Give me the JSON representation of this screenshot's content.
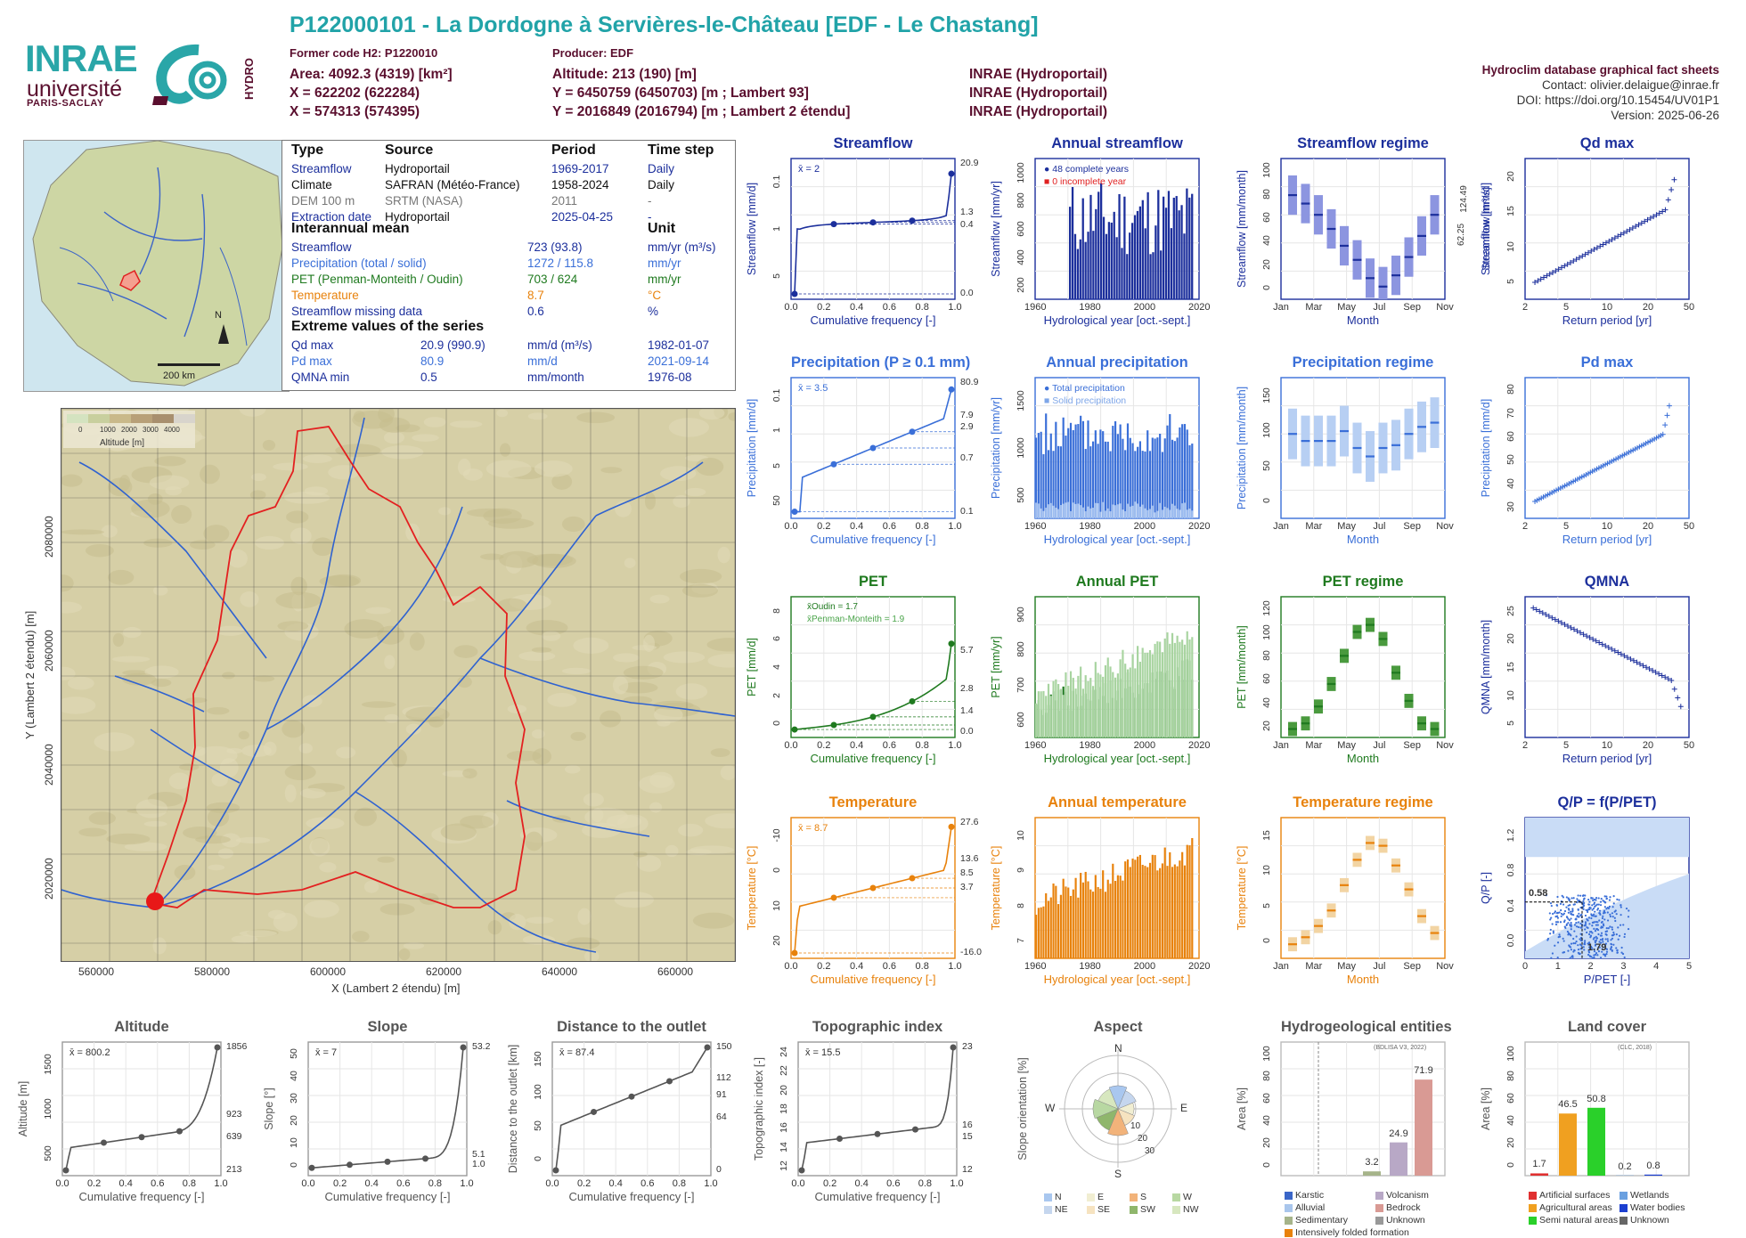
{
  "header": {
    "title": "P122000101 - La Dordogne à Servières-le-Château [EDF - Le Chastang]",
    "former_code": "Former code H2: P1220010",
    "producer": "Producer: EDF",
    "area": "Area: 4092.3 (4319) [km²]",
    "x1": "X = 622202 (622284)",
    "x2": "X = 574313 (574395)",
    "altitude": "Altitude: 213 (190) [m]",
    "y1": "Y = 6450759 (6450703) [m ; Lambert 93]",
    "y2": "Y = 2016849 (2016794) [m ; Lambert 2 étendu]",
    "src1": "INRAE (Hydroportail)",
    "src2": "INRAE (Hydroportail)",
    "src3": "INRAE (Hydroportail)",
    "sheet": "Hydroclim database graphical fact sheets",
    "contact": "Contact: olivier.delaigue@inrae.fr",
    "doi": "DOI: https://doi.org/10.15454/UV01P1",
    "version": "Version: 2025-06-26"
  },
  "logos": {
    "inrae": "INRAE",
    "univ": "université",
    "ps": "PARIS-SACLAY",
    "hydro": "HYDRO"
  },
  "inset": {
    "north": "N",
    "scale": "200 km"
  },
  "info": {
    "h_type": "Type",
    "h_source": "Source",
    "h_period": "Period",
    "h_timestep": "Time step",
    "rows": [
      {
        "type": "Streamflow",
        "source": "Hydroportail",
        "period": "1969-2017",
        "step": "Daily",
        "color": "#1c2f9c"
      },
      {
        "type": "Climate",
        "source": "SAFRAN (Météo-France)",
        "period": "1958-2024",
        "step": "Daily",
        "color": "#111"
      },
      {
        "type": "DEM 100 m",
        "source": "SRTM (NASA)",
        "period": "2011",
        "step": "-",
        "color": "#777"
      },
      {
        "type": "Extraction date",
        "source": "Hydroportail",
        "period": "2025-04-25",
        "step": "-",
        "color": "#1c2f9c"
      }
    ],
    "h_inter": "Interannual mean",
    "h_unit": "Unit",
    "inter": [
      {
        "label": "Streamflow",
        "value": "723 (93.8)",
        "unit": "mm/yr (m³/s)",
        "color": "#1c2f9c"
      },
      {
        "label": "Precipitation (total / solid)",
        "value": "1272 / 115.8",
        "unit": "mm/yr",
        "color": "#3a6fd8"
      },
      {
        "label": "PET (Penman-Monteith / Oudin)",
        "value": "703 / 624",
        "unit": "mm/yr",
        "color": "#1f7a1f"
      },
      {
        "label": "Temperature",
        "value": "8.7",
        "unit": "°C",
        "color": "#e8820c"
      },
      {
        "label": "Streamflow missing data",
        "value": "0.6",
        "unit": "%",
        "color": "#1c2f9c"
      }
    ],
    "h_extreme": "Extreme values of the series",
    "extreme": [
      {
        "label": "Qd max",
        "value": "20.9 (990.9)",
        "unit": "mm/d (m³/s)",
        "date": "1982-01-07",
        "color": "#1c2f9c"
      },
      {
        "label": "Pd max",
        "value": "80.9",
        "unit": "mm/d",
        "date": "2021-09-14",
        "color": "#3a6fd8"
      },
      {
        "label": "QMNA min",
        "value": "0.5",
        "unit": "mm/month",
        "date": "1976-08",
        "color": "#1c2f9c"
      }
    ]
  },
  "bigmap": {
    "x_ticks": [
      "560000",
      "580000",
      "600000",
      "620000",
      "640000",
      "660000"
    ],
    "y_ticks": [
      "2020000",
      "2040000",
      "2060000",
      "2080000"
    ],
    "xlabel": "X (Lambert 2 étendu) [m]",
    "ylabel": "Y (Lambert 2 étendu) [m]",
    "legend_ticks": [
      "0",
      "1000",
      "2000",
      "3000",
      "4000"
    ],
    "legend_title": "Altitude [m]"
  },
  "panels": {
    "streamflow": {
      "title": "Streamflow",
      "ylabel": "Streamflow [mm/d]",
      "xlabel": "Cumulative frequency [-]",
      "mean": "x̄ = 2",
      "right_ticks": [
        "20.9",
        "1.3",
        "0.4",
        "0.0"
      ],
      "x_ticks": [
        "0.0",
        "0.2",
        "0.4",
        "0.6",
        "0.8",
        "1.0"
      ],
      "y_ticks": [
        "5",
        "1",
        "0.1"
      ]
    },
    "annual_streamflow": {
      "title": "Annual streamflow",
      "ylabel": "Streamflow [mm/yr]",
      "xlabel": "Hydrological year [oct.-sept.]",
      "leg1": "48 complete years",
      "leg2": "0 incomplete year",
      "x_ticks": [
        "1960",
        "1980",
        "2000",
        "2020"
      ],
      "y_ticks": [
        "200",
        "400",
        "600",
        "800",
        "1000"
      ]
    },
    "streamflow_regime": {
      "title": "Streamflow regime",
      "ylabel": "Streamflow [mm/month]",
      "xlabel": "Month",
      "right_label": "Streamflow [m³/s]",
      "right_ticks": [
        "124.49",
        "62.25"
      ],
      "x_ticks": [
        "Jan",
        "Mar",
        "May",
        "Jul",
        "Sep",
        "Nov"
      ],
      "y_ticks": [
        "0",
        "20",
        "40",
        "60",
        "80",
        "100"
      ]
    },
    "qd_max": {
      "title": "Qd max",
      "ylabel": "Streamflow [mm/d]",
      "xlabel": "Return period [yr]",
      "x_ticks": [
        "2",
        "5",
        "10",
        "20",
        "50"
      ],
      "y_ticks": [
        "5",
        "10",
        "15",
        "20"
      ]
    },
    "precipitation": {
      "title": "Precipitation (P ≥ 0.1 mm)",
      "ylabel": "Precipitation [mm/d]",
      "xlabel": "Cumulative frequency [-]",
      "mean": "x̄ = 3.5",
      "right_ticks": [
        "80.9",
        "7.9",
        "2.9",
        "0.7",
        "0.1"
      ],
      "x_ticks": [
        "0.0",
        "0.2",
        "0.4",
        "0.6",
        "0.8",
        "1.0"
      ],
      "y_ticks": [
        "50",
        "5",
        "1",
        "0.1"
      ]
    },
    "annual_precipitation": {
      "title": "Annual precipitation",
      "ylabel": "Precipitation [mm/yr]",
      "xlabel": "Hydrological year [oct.-sept.]",
      "leg1": "Total precipitation",
      "leg2": "Solid precipitation",
      "x_ticks": [
        "1960",
        "1980",
        "2000",
        "2020"
      ],
      "y_ticks": [
        "500",
        "1000",
        "1500"
      ]
    },
    "precipitation_regime": {
      "title": "Precipitation regime",
      "ylabel": "Precipitation [mm/month]",
      "xlabel": "Month",
      "x_ticks": [
        "Jan",
        "Mar",
        "May",
        "Jul",
        "Sep",
        "Nov"
      ],
      "y_ticks": [
        "0",
        "50",
        "100",
        "150"
      ]
    },
    "pd_max": {
      "title": "Pd max",
      "ylabel": "Precipitation [mm/d]",
      "xlabel": "Return period [yr]",
      "x_ticks": [
        "2",
        "5",
        "10",
        "20",
        "50"
      ],
      "y_ticks": [
        "30",
        "40",
        "50",
        "60",
        "70",
        "80"
      ]
    },
    "pet": {
      "title": "PET",
      "ylabel": "PET [mm/d]",
      "xlabel": "Cumulative frequency [-]",
      "leg1": "x̄Oudin = 1.7",
      "leg2": "x̄Penman-Monteith = 1.9",
      "right_ticks": [
        "5.7",
        "2.8",
        "1.4",
        "0.0"
      ],
      "x_ticks": [
        "0.0",
        "0.2",
        "0.4",
        "0.6",
        "0.8",
        "1.0"
      ],
      "y_ticks": [
        "0",
        "2",
        "4",
        "6",
        "8"
      ]
    },
    "annual_pet": {
      "title": "Annual PET",
      "ylabel": "PET [mm/yr]",
      "xlabel": "Hydrological year [oct.-sept.]",
      "x_ticks": [
        "1960",
        "1980",
        "2000",
        "2020"
      ],
      "y_ticks": [
        "600",
        "700",
        "800",
        "900"
      ]
    },
    "pet_regime": {
      "title": "PET regime",
      "ylabel": "PET [mm/month]",
      "xlabel": "Month",
      "x_ticks": [
        "Jan",
        "Mar",
        "May",
        "Jul",
        "Sep",
        "Nov"
      ],
      "y_ticks": [
        "20",
        "40",
        "60",
        "80",
        "100",
        "120"
      ]
    },
    "qmna": {
      "title": "QMNA",
      "ylabel": "QMNA [mm/month]",
      "xlabel": "Return period [yr]",
      "x_ticks": [
        "2",
        "5",
        "10",
        "20",
        "50"
      ],
      "y_ticks": [
        "5",
        "10",
        "15",
        "20",
        "25"
      ]
    },
    "temperature": {
      "title": "Temperature",
      "ylabel": "Temperature [°C]",
      "xlabel": "Cumulative frequency [-]",
      "mean": "x̄ = 8.7",
      "right_ticks": [
        "27.6",
        "13.6",
        "8.5",
        "3.7",
        "-16.0"
      ],
      "x_ticks": [
        "0.0",
        "0.2",
        "0.4",
        "0.6",
        "0.8",
        "1.0"
      ],
      "y_ticks": [
        "20",
        "10",
        "0",
        "-10"
      ]
    },
    "annual_temperature": {
      "title": "Annual temperature",
      "ylabel": "Temperature [°C]",
      "xlabel": "Hydrological year [oct.-sept.]",
      "x_ticks": [
        "1960",
        "1980",
        "2000",
        "2020"
      ],
      "y_ticks": [
        "7",
        "8",
        "9",
        "10"
      ]
    },
    "temperature_regime": {
      "title": "Temperature regime",
      "ylabel": "Temperature [°C]",
      "xlabel": "Month",
      "x_ticks": [
        "Jan",
        "Mar",
        "May",
        "Jul",
        "Sep",
        "Nov"
      ],
      "y_ticks": [
        "0",
        "5",
        "10",
        "15"
      ]
    },
    "qp": {
      "title": "Q/P = f(P/PET)",
      "ylabel": "Q/P [-]",
      "xlabel": "P/PET [-]",
      "v1": "0.58",
      "v2": "1.79",
      "x_ticks": [
        "0",
        "1",
        "2",
        "3",
        "4",
        "5"
      ],
      "y_ticks": [
        "0.0",
        "0.4",
        "0.8",
        "1.2"
      ]
    },
    "altitude": {
      "title": "Altitude",
      "ylabel": "Altitude [m]",
      "xlabel": "Cumulative frequency [-]",
      "mean": "x̄ = 800.2",
      "right_ticks": [
        "1856",
        "923",
        "639",
        "213"
      ],
      "x_ticks": [
        "0.0",
        "0.2",
        "0.4",
        "0.6",
        "0.8",
        "1.0"
      ],
      "y_ticks": [
        "500",
        "1000",
        "1500"
      ]
    },
    "slope": {
      "title": "Slope",
      "ylabel": "Slope [°]",
      "xlabel": "Cumulative frequency [-]",
      "mean": "x̄ = 7",
      "right_ticks": [
        "53.2",
        "5.1",
        "1.0"
      ],
      "x_ticks": [
        "0.0",
        "0.2",
        "0.4",
        "0.6",
        "0.8",
        "1.0"
      ],
      "y_ticks": [
        "0",
        "10",
        "20",
        "30",
        "40",
        "50"
      ]
    },
    "distance": {
      "title": "Distance to the outlet",
      "ylabel": "Distance to the outlet [km]",
      "xlabel": "Cumulative frequency [-]",
      "mean": "x̄ = 87.4",
      "right_ticks": [
        "150",
        "112",
        "91",
        "64",
        "0"
      ],
      "x_ticks": [
        "0.0",
        "0.2",
        "0.4",
        "0.6",
        "0.8",
        "1.0"
      ],
      "y_ticks": [
        "0",
        "50",
        "100",
        "150"
      ]
    },
    "topo": {
      "title": "Topographic index",
      "ylabel": "Topographic index [-]",
      "xlabel": "Cumulative frequency [-]",
      "mean": "x̄ = 15.5",
      "right_ticks": [
        "23",
        "16",
        "15",
        "12"
      ],
      "x_ticks": [
        "0.0",
        "0.2",
        "0.4",
        "0.6",
        "0.8",
        "1.0"
      ],
      "y_ticks": [
        "12",
        "14",
        "16",
        "18",
        "20",
        "22",
        "24"
      ]
    },
    "aspect": {
      "title": "Aspect",
      "ylabel": "Slope orientation [%]",
      "dirs": [
        "N",
        "E",
        "S",
        "W"
      ],
      "rings": [
        "10",
        "20",
        "30"
      ],
      "legend": [
        "N",
        "E",
        "S",
        "W",
        "NE",
        "SE",
        "SW",
        "NW"
      ]
    },
    "hydrogeo": {
      "title": "Hydrogeological entities",
      "ylabel": "Area [%]",
      "source": "(BDLISA V3, 2022)",
      "values": [
        "3.2",
        "24.9",
        "71.9"
      ],
      "y_ticks": [
        "0",
        "20",
        "40",
        "60",
        "80",
        "100"
      ],
      "legend": [
        "Karstic",
        "Volcanism",
        "Alluvial",
        "Bedrock",
        "Sedimentary",
        "Unknown",
        "Intensively folded formation"
      ]
    },
    "landcover": {
      "title": "Land cover",
      "ylabel": "Area [%]",
      "source": "(CLC, 2018)",
      "values": [
        "1.7",
        "46.5",
        "50.8",
        "0.2",
        "0.8"
      ],
      "y_ticks": [
        "0",
        "20",
        "40",
        "60",
        "80",
        "100"
      ],
      "legend": [
        "Artificial surfaces",
        "Wetlands",
        "Agricultural areas",
        "Water bodies",
        "Semi natural areas",
        "Unknown"
      ]
    }
  },
  "colors": {
    "blue": "#1c2f9c",
    "lightblue": "#3a6fd8",
    "green": "#1f7a1f",
    "orange": "#e8820c",
    "grey": "#555555",
    "title_teal": "#21a3a8",
    "dark_red": "#5a0f2e"
  }
}
